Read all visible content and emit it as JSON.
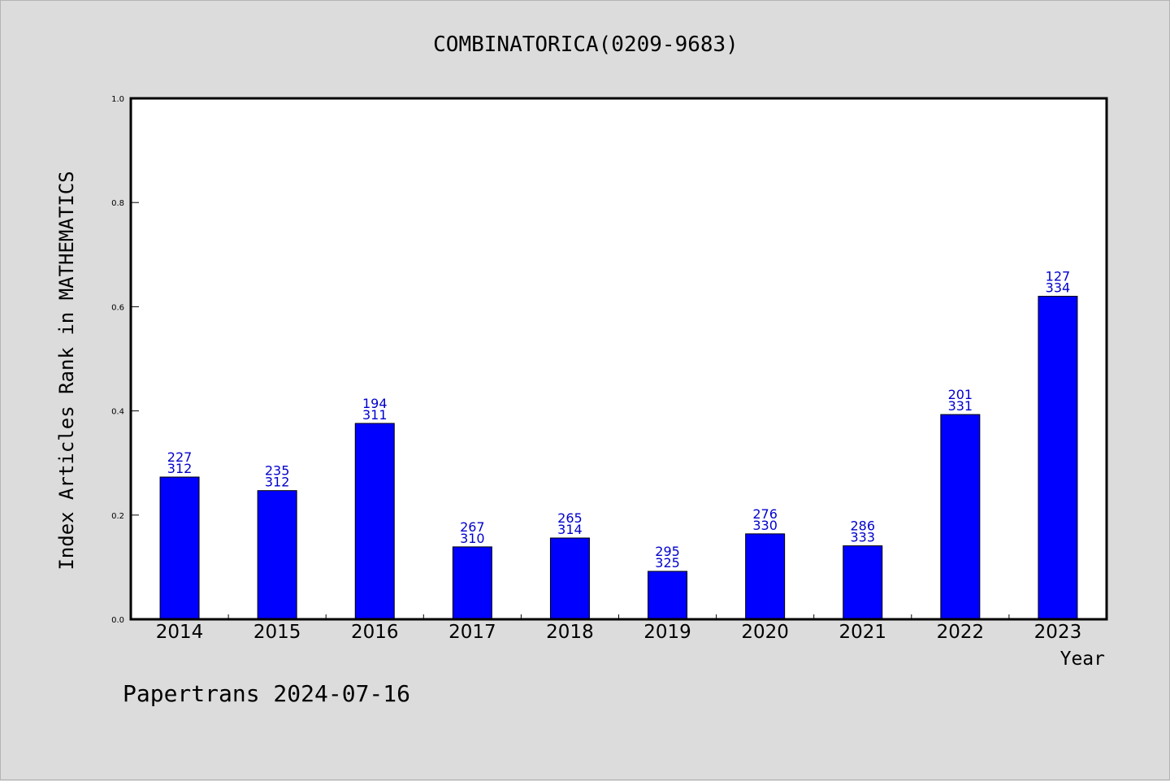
{
  "chart_data": {
    "type": "bar",
    "title": "COMBINATORICA(0209-9683)",
    "xlabel": "Year",
    "ylabel": "Index Articles Rank in MATHEMATICS",
    "ylim": [
      0,
      1.0
    ],
    "yticks": [
      "0.0",
      "0.2",
      "0.4",
      "0.6",
      "0.8",
      "1.0"
    ],
    "categories": [
      "2014",
      "2015",
      "2016",
      "2017",
      "2018",
      "2019",
      "2020",
      "2021",
      "2022",
      "2023"
    ],
    "values": [
      0.273,
      0.247,
      0.376,
      0.139,
      0.156,
      0.092,
      0.164,
      0.141,
      0.393,
      0.62
    ],
    "rank": [
      "227",
      "235",
      "194",
      "267",
      "265",
      "295",
      "276",
      "286",
      "201",
      "127"
    ],
    "total": [
      "312",
      "312",
      "311",
      "310",
      "314",
      "325",
      "330",
      "333",
      "331",
      "334"
    ],
    "bar_color": "#0000ff",
    "label_color": "#0000cc",
    "grid": false,
    "legend": "none"
  },
  "footer": "Papertrans 2024-07-16"
}
